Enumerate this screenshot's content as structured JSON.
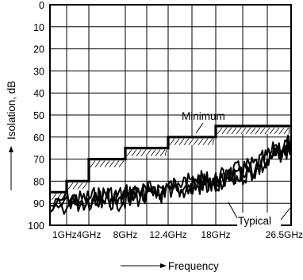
{
  "chart_data": {
    "type": "line",
    "title": "",
    "xlabel": "Frequency",
    "ylabel": "Isolation, dB",
    "ylim": [
      0,
      100
    ],
    "y_inverted": true,
    "y_ticks": [
      0,
      10,
      20,
      30,
      40,
      50,
      60,
      70,
      80,
      90,
      100
    ],
    "x_tick_labels": [
      "1GHz",
      "4GHz",
      "8GHz",
      "12.4GHz",
      "18GHz",
      "26.5GHz"
    ],
    "grid": true,
    "annotations": [
      "Minimum",
      "Typical"
    ],
    "series": [
      {
        "name": "Minimum",
        "style": "step",
        "steps": [
          {
            "from": "1GHz",
            "to": "2GHz",
            "value": 85
          },
          {
            "from": "2GHz",
            "to": "4GHz",
            "value": 80
          },
          {
            "from": "4GHz",
            "to": "8GHz",
            "value": 70
          },
          {
            "from": "8GHz",
            "to": "12.4GHz",
            "value": 65
          },
          {
            "from": "12.4GHz",
            "to": "18GHz",
            "value": 60
          },
          {
            "from": "18GHz",
            "to": "26.5GHz",
            "value": 55
          }
        ]
      },
      {
        "name": "Typical",
        "style": "noisy",
        "points": [
          [
            1.0,
            95
          ],
          [
            1.5,
            92
          ],
          [
            2.0,
            88
          ],
          [
            3.0,
            90
          ],
          [
            4.0,
            89
          ],
          [
            5.0,
            88
          ],
          [
            6.0,
            87
          ],
          [
            7.0,
            88
          ],
          [
            8.0,
            87
          ],
          [
            9.0,
            86
          ],
          [
            10.0,
            86
          ],
          [
            11.0,
            85
          ],
          [
            12.4,
            84
          ],
          [
            13.5,
            83
          ],
          [
            15.0,
            82
          ],
          [
            16.5,
            81
          ],
          [
            18.0,
            81
          ],
          [
            19.5,
            78
          ],
          [
            21.0,
            76
          ],
          [
            22.5,
            74
          ],
          [
            24.0,
            70
          ],
          [
            25.0,
            66
          ],
          [
            26.5,
            64
          ]
        ]
      }
    ]
  }
}
